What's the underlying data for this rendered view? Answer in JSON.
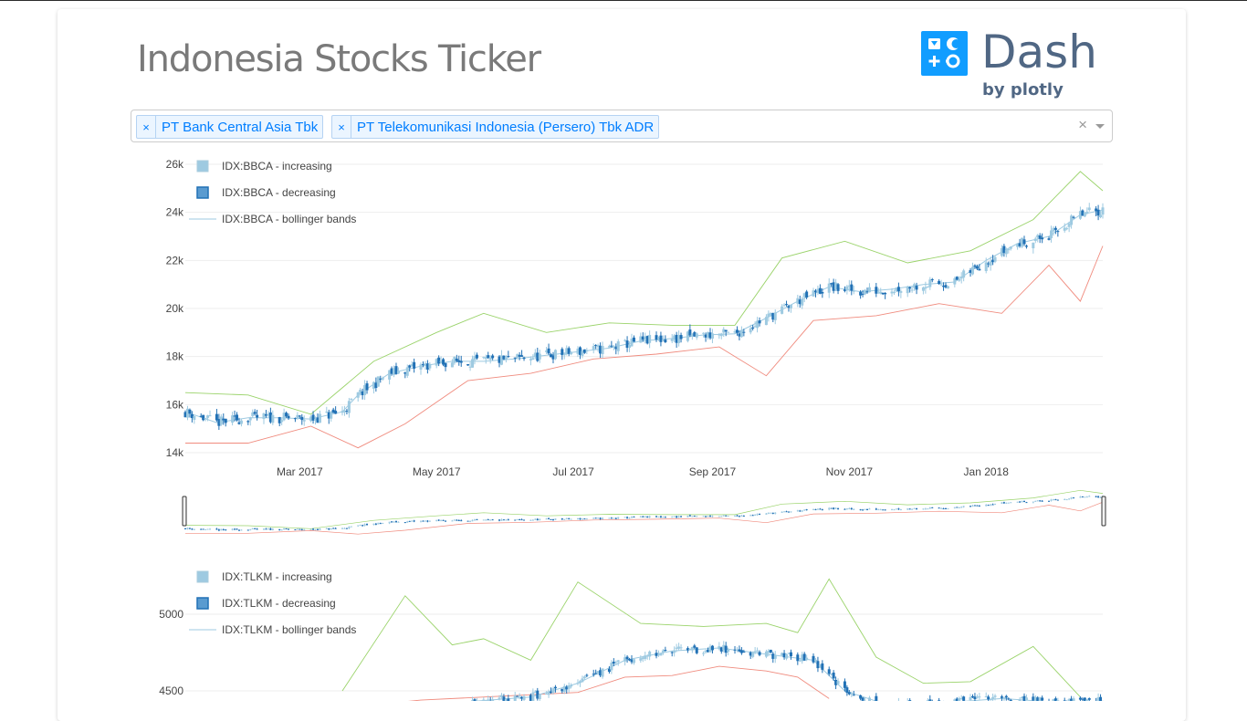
{
  "header": {
    "title": "Indonesia Stocks Ticker",
    "logo_word": "Dash",
    "logo_byline": "by plotly"
  },
  "ticker_select": {
    "selected": [
      {
        "label": "PT Bank Central Asia Tbk",
        "remove": "×"
      },
      {
        "label": "PT Telekomunikasi Indonesia (Persero) Tbk ADR",
        "remove": "×"
      }
    ],
    "clear": "×"
  },
  "colors": {
    "increasing": "#9ecae1",
    "decreasing": "#2171b5",
    "bollinger_mid": "#9ecae1",
    "bollinger_upper": "#9ad36a",
    "bollinger_lower": "#f08b7e",
    "grid": "#eeeeee",
    "axis_text": "#444444"
  },
  "chart_data": [
    {
      "type": "candlestick",
      "ticker": "IDX:BBCA",
      "legend": [
        "IDX:BBCA - increasing",
        "IDX:BBCA - decreasing",
        "IDX:BBCA - bollinger bands"
      ],
      "legend_position": "top-left",
      "y_ticks": [
        "14k",
        "16k",
        "18k",
        "20k",
        "22k",
        "24k",
        "26k"
      ],
      "x_ticks": [
        "Mar 2017",
        "May 2017",
        "Jul 2017",
        "Sep 2017",
        "Nov 2017",
        "Jan 2018"
      ],
      "x_range": [
        "2017-01-09",
        "2018-02-22"
      ],
      "ylim": [
        14000,
        26000
      ],
      "grid": true,
      "range_slider": true,
      "close_series": [
        [
          "2017-01-09",
          15700
        ],
        [
          "2017-01-23",
          15250
        ],
        [
          "2017-02-06",
          15450
        ],
        [
          "2017-02-20",
          15450
        ],
        [
          "2017-03-06",
          15400
        ],
        [
          "2017-03-20",
          15700
        ],
        [
          "2017-03-27",
          16400
        ],
        [
          "2017-04-10",
          17300
        ],
        [
          "2017-04-24",
          17600
        ],
        [
          "2017-05-08",
          17800
        ],
        [
          "2017-05-22",
          17800
        ],
        [
          "2017-06-05",
          17900
        ],
        [
          "2017-06-19",
          18050
        ],
        [
          "2017-07-03",
          18200
        ],
        [
          "2017-07-17",
          18350
        ],
        [
          "2017-07-31",
          18650
        ],
        [
          "2017-08-14",
          18750
        ],
        [
          "2017-08-28",
          18900
        ],
        [
          "2017-09-11",
          18950
        ],
        [
          "2017-09-25",
          19600
        ],
        [
          "2017-10-09",
          20300
        ],
        [
          "2017-10-23",
          20900
        ],
        [
          "2017-11-06",
          20700
        ],
        [
          "2017-11-20",
          20800
        ],
        [
          "2017-12-04",
          21000
        ],
        [
          "2017-12-18",
          21100
        ],
        [
          "2018-01-01",
          22000
        ],
        [
          "2018-01-15",
          22700
        ],
        [
          "2018-01-29",
          23000
        ],
        [
          "2018-02-12",
          23900
        ],
        [
          "2018-02-22",
          24100
        ]
      ],
      "upper_band": [
        [
          "2017-01-09",
          16500
        ],
        [
          "2017-02-06",
          16400
        ],
        [
          "2017-03-06",
          15600
        ],
        [
          "2017-04-03",
          17800
        ],
        [
          "2017-05-01",
          19000
        ],
        [
          "2017-05-22",
          19800
        ],
        [
          "2017-06-19",
          19000
        ],
        [
          "2017-07-17",
          19400
        ],
        [
          "2017-08-14",
          19300
        ],
        [
          "2017-09-11",
          19300
        ],
        [
          "2017-10-02",
          22100
        ],
        [
          "2017-10-30",
          22800
        ],
        [
          "2017-11-27",
          21900
        ],
        [
          "2017-12-25",
          22400
        ],
        [
          "2018-01-22",
          23700
        ],
        [
          "2018-02-12",
          25700
        ],
        [
          "2018-02-22",
          24900
        ]
      ],
      "lower_band": [
        [
          "2017-01-09",
          14400
        ],
        [
          "2017-02-06",
          14400
        ],
        [
          "2017-03-06",
          15100
        ],
        [
          "2017-03-27",
          14200
        ],
        [
          "2017-04-17",
          15200
        ],
        [
          "2017-05-15",
          17000
        ],
        [
          "2017-06-12",
          17300
        ],
        [
          "2017-07-10",
          17900
        ],
        [
          "2017-08-07",
          18100
        ],
        [
          "2017-09-04",
          18400
        ],
        [
          "2017-09-25",
          17200
        ],
        [
          "2017-10-16",
          19500
        ],
        [
          "2017-11-13",
          19700
        ],
        [
          "2017-12-11",
          20200
        ],
        [
          "2018-01-08",
          19800
        ],
        [
          "2018-01-29",
          21800
        ],
        [
          "2018-02-12",
          20300
        ],
        [
          "2018-02-22",
          22600
        ]
      ]
    },
    {
      "type": "candlestick",
      "ticker": "IDX:TLKM",
      "legend": [
        "IDX:TLKM - increasing",
        "IDX:TLKM - decreasing",
        "IDX:TLKM - bollinger bands"
      ],
      "legend_position": "top-left",
      "y_ticks": [
        "5000",
        "4500"
      ],
      "x_range": [
        "2017-01-09",
        "2018-02-22"
      ],
      "grid": true,
      "close_series": [
        [
          "2017-05-15",
          4430
        ],
        [
          "2017-06-12",
          4460
        ],
        [
          "2017-07-03",
          4550
        ],
        [
          "2017-07-24",
          4700
        ],
        [
          "2017-08-14",
          4760
        ],
        [
          "2017-09-04",
          4780
        ],
        [
          "2017-09-25",
          4740
        ],
        [
          "2017-10-16",
          4700
        ],
        [
          "2017-10-30",
          4500
        ],
        [
          "2017-11-20",
          4400
        ],
        [
          "2017-12-11",
          4420
        ],
        [
          "2018-01-08",
          4450
        ],
        [
          "2018-01-29",
          4430
        ],
        [
          "2018-02-22",
          4430
        ]
      ],
      "upper_band": [
        [
          "2017-03-20",
          4500
        ],
        [
          "2017-04-17",
          5120
        ],
        [
          "2017-05-08",
          4800
        ],
        [
          "2017-05-22",
          4840
        ],
        [
          "2017-06-12",
          4700
        ],
        [
          "2017-07-03",
          5210
        ],
        [
          "2017-07-31",
          4940
        ],
        [
          "2017-08-28",
          4920
        ],
        [
          "2017-09-25",
          4940
        ],
        [
          "2017-10-09",
          4880
        ],
        [
          "2017-10-23",
          5230
        ],
        [
          "2017-11-13",
          4720
        ],
        [
          "2017-12-04",
          4550
        ],
        [
          "2017-12-25",
          4560
        ],
        [
          "2018-01-22",
          4790
        ],
        [
          "2018-02-12",
          4460
        ]
      ],
      "lower_band": [
        [
          "2017-04-10",
          4420
        ],
        [
          "2017-04-24",
          4440
        ],
        [
          "2017-07-03",
          4490
        ],
        [
          "2017-07-24",
          4590
        ],
        [
          "2017-08-14",
          4600
        ],
        [
          "2017-09-04",
          4660
        ],
        [
          "2017-09-25",
          4630
        ],
        [
          "2017-10-09",
          4590
        ],
        [
          "2017-10-23",
          4450
        ]
      ]
    }
  ]
}
